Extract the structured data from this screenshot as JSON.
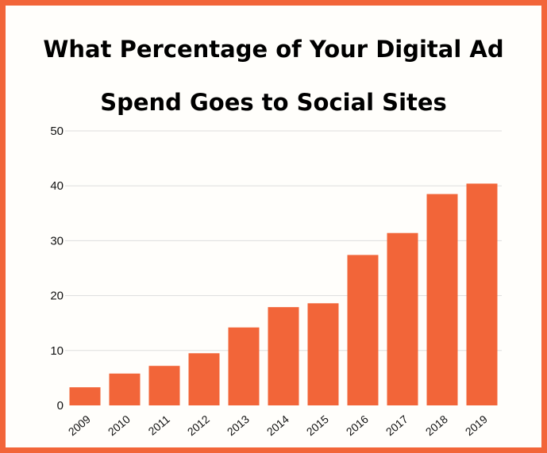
{
  "chart_data": {
    "type": "bar",
    "title": "What Percentage of Your Digital Ad Spend Goes to Social Sites",
    "xlabel": "",
    "ylabel": "",
    "categories": [
      "2009",
      "2010",
      "2011",
      "2012",
      "2013",
      "2014",
      "2015",
      "2016",
      "2017",
      "2018",
      "2019"
    ],
    "values": [
      3.3,
      5.8,
      7.2,
      9.5,
      14.2,
      17.9,
      18.6,
      27.4,
      31.4,
      38.5,
      40.4
    ],
    "ylim": [
      0,
      50
    ],
    "yticks": [
      0,
      10,
      20,
      30,
      40,
      50
    ],
    "grid": true,
    "legend": "none",
    "colors": {
      "bar": "#f26539",
      "frame": "#f26539",
      "background": "#fffefb",
      "grid": "#dddddd"
    }
  }
}
